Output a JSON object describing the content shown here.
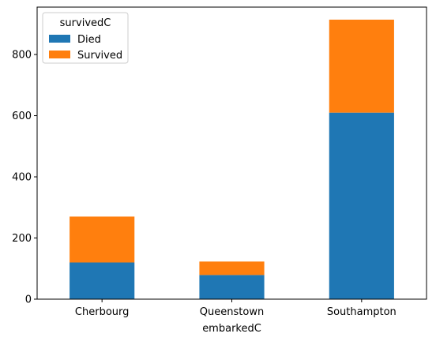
{
  "chart_data": {
    "type": "bar",
    "stacked": true,
    "categories": [
      "Cherbourg",
      "Queenstown",
      "Southampton"
    ],
    "series": [
      {
        "name": "Died",
        "values": [
          120,
          79,
          610
        ],
        "color": "#1f77b4"
      },
      {
        "name": "Survived",
        "values": [
          150,
          44,
          304
        ],
        "color": "#ff7f0e"
      }
    ],
    "xlabel": "embarkedC",
    "ylabel": "",
    "ylim": [
      0,
      955
    ],
    "yticks": [
      0,
      200,
      400,
      600,
      800
    ],
    "grid": false,
    "legend": {
      "title": "survivedC",
      "placement": "top-left"
    }
  }
}
